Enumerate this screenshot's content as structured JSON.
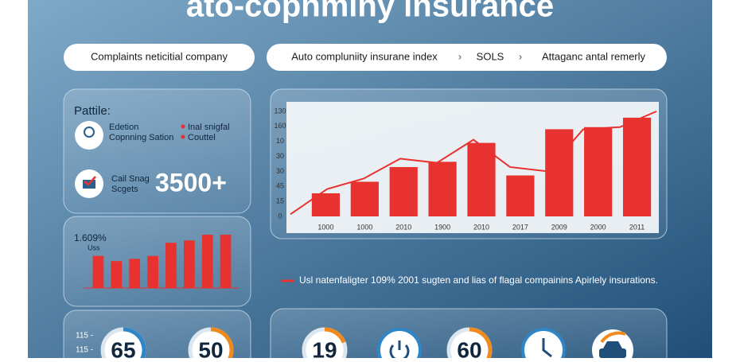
{
  "header": {
    "title": "ato-copnminy insurance"
  },
  "nav": {
    "left": "Complaints neticitial company",
    "crumbs": [
      "Auto compluniity insurane index",
      "SOLS",
      "Attaganc antal remerly"
    ]
  },
  "profile": {
    "title": "Pattile:",
    "items": [
      {
        "left": [
          "Edetion",
          "Copnning Sation"
        ],
        "right": [
          "Inal snigfal",
          "Couttel"
        ]
      }
    ]
  },
  "stat": {
    "lines": [
      "Cail Snag",
      "Scgets"
    ],
    "value": "3500+"
  },
  "trend_chart": {
    "ylim": [
      0,
      100
    ],
    "y_labels": [
      "130",
      "160",
      "10",
      "30",
      "30",
      "45",
      "15",
      "0"
    ],
    "categories": [
      "1000",
      "1000",
      "2010",
      "1900",
      "2010",
      "2017",
      "2009",
      "2000",
      "2011"
    ],
    "bars": [
      22,
      33,
      47,
      52,
      70,
      39,
      83,
      85,
      94
    ],
    "color": "#e8322f",
    "line": [
      2,
      26,
      36,
      55,
      51,
      73,
      47,
      43,
      83,
      85,
      100
    ]
  },
  "mini_chart": {
    "label": "1.609%",
    "sublabel": "Uss",
    "ylim": [
      0,
      100
    ],
    "values": [
      56,
      47,
      51,
      56,
      79,
      83,
      93,
      93
    ],
    "color": "#e8322f"
  },
  "caption": "Usl natenfaligter 109% 2001 sugten and lias of flagal compainins Apirlely insurations.",
  "gauges_left": {
    "labels": [
      "115 -",
      "115 -"
    ],
    "values": [
      65,
      50
    ]
  },
  "gauges_right": {
    "values": [
      19,
      60
    ]
  }
}
